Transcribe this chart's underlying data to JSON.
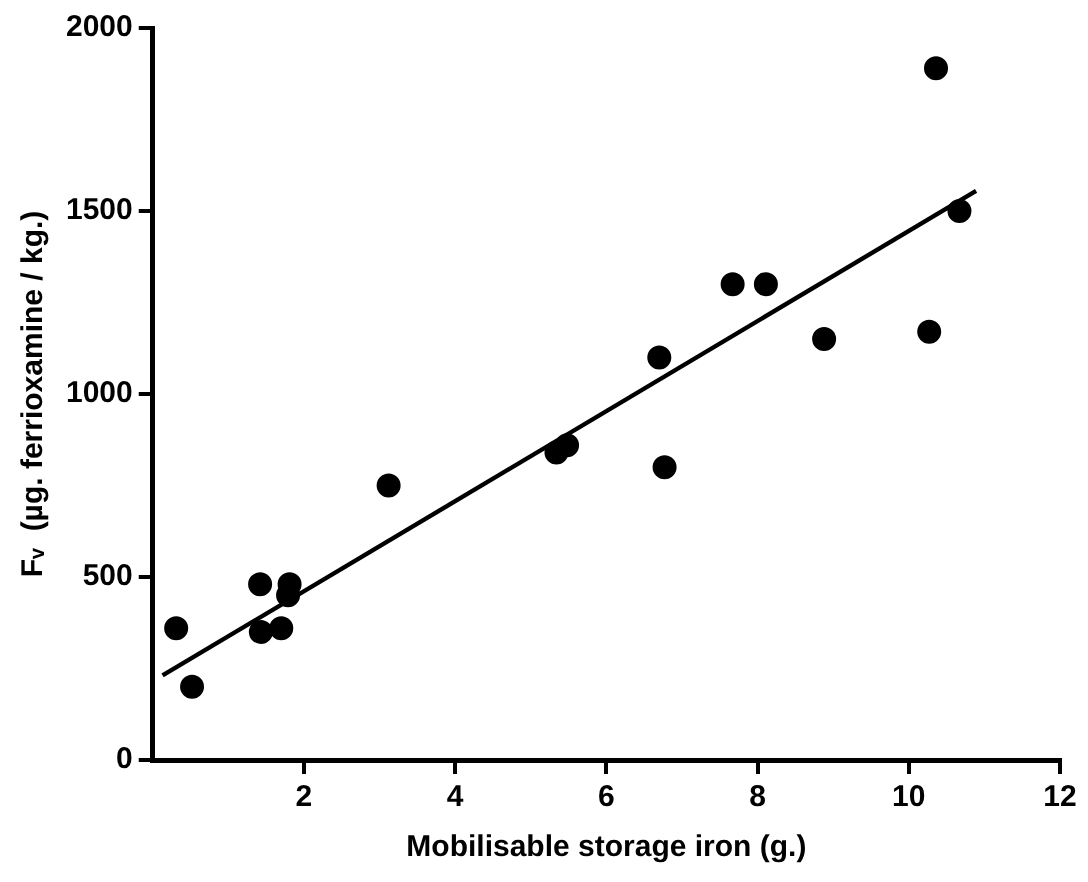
{
  "chart_data": {
    "type": "scatter",
    "xlabel": "Mobilisable storage iron (g.)",
    "ylabel": "Fᵥ  (µg. ferrioxamine / kg.)",
    "xlim": [
      0,
      12
    ],
    "ylim": [
      0,
      2000
    ],
    "xticks": [
      2,
      4,
      6,
      8,
      10,
      12
    ],
    "yticks": [
      0,
      500,
      1000,
      1500,
      2000
    ],
    "grid": false,
    "legend": false,
    "marker": "circle",
    "series": [
      {
        "type": "scatter",
        "color": "#000000",
        "x": [
          0.31,
          0.52,
          1.42,
          1.43,
          1.7,
          1.81,
          1.79,
          3.12,
          5.34,
          5.48,
          6.7,
          6.77,
          7.67,
          8.11,
          8.88,
          10.27,
          10.36,
          10.67
        ],
        "values": [
          360,
          200,
          480,
          350,
          360,
          480,
          450,
          750,
          840,
          860,
          1100,
          800,
          1300,
          1300,
          1150,
          1170,
          1890,
          1500
        ]
      },
      {
        "type": "line",
        "color": "#000000",
        "x": [
          0.13,
          10.89
        ],
        "values": [
          231,
          1555
        ],
        "marker": "none",
        "line_style": "solid"
      }
    ]
  }
}
